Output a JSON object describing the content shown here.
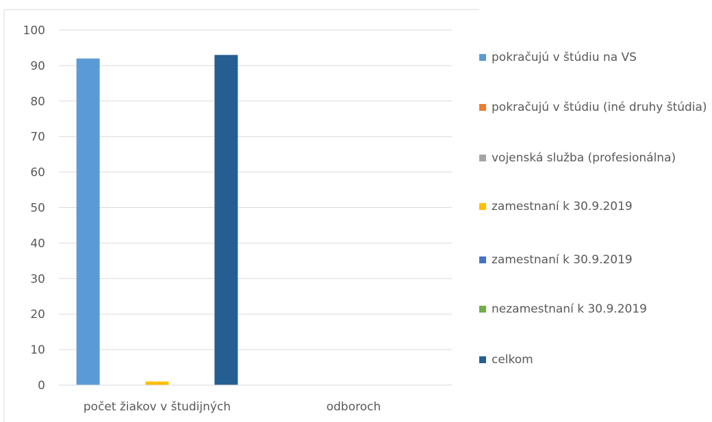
{
  "chart_data": {
    "type": "bar",
    "categories": [
      "počet žiakov v študijných",
      "odboroch"
    ],
    "series": [
      {
        "name": "pokračujú v štúdiu na VS",
        "color": "#5b9bd5",
        "values": [
          92,
          0
        ]
      },
      {
        "name": "pokračujú v štúdiu (iné druhy štúdia)",
        "color": "#ed7d31",
        "values": [
          0,
          0
        ]
      },
      {
        "name": "vojenská služba (profesionálna)",
        "color": "#a5a5a5",
        "values": [
          0,
          0
        ]
      },
      {
        "name": "zamestnaní k 30.9.2019",
        "color": "#ffc000",
        "values": [
          1,
          0
        ]
      },
      {
        "name": "zamestnaní k 30.9.2019",
        "color": "#4472c4",
        "values": [
          0,
          0
        ]
      },
      {
        "name": "nezamestnaní k 30.9.2019",
        "color": "#70ad47",
        "values": [
          0,
          0
        ]
      },
      {
        "name": "celkom",
        "color": "#255e91",
        "values": [
          93,
          0
        ]
      }
    ],
    "ylim": [
      0,
      100
    ],
    "yticks": [
      0,
      10,
      20,
      30,
      40,
      50,
      60,
      70,
      80,
      90,
      100
    ],
    "grid": true,
    "legend": "right"
  }
}
